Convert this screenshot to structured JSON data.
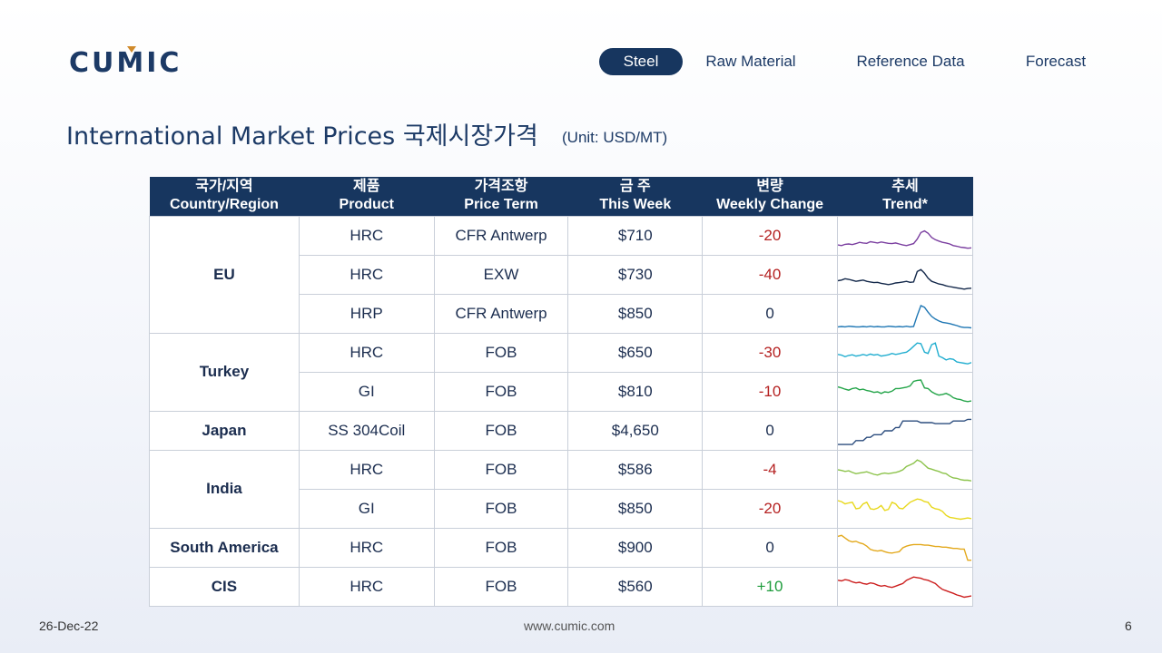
{
  "logo": {
    "text_pre": "CU",
    "text_m": "M",
    "text_post": "IC"
  },
  "nav": [
    {
      "label": "Steel",
      "active": true
    },
    {
      "label": "Raw Material",
      "active": false
    },
    {
      "label": "Reference Data",
      "active": false
    },
    {
      "label": "Forecast",
      "active": false
    }
  ],
  "title": "International Market Prices 국제시장가격",
  "unit": "(Unit: USD/MT)",
  "table": {
    "headers": [
      {
        "ko": "국가/지역",
        "en": "Country/Region"
      },
      {
        "ko": "제품",
        "en": "Product"
      },
      {
        "ko": "가격조항",
        "en": "Price Term"
      },
      {
        "ko": "금 주",
        "en": "This Week"
      },
      {
        "ko": "변량",
        "en": "Weekly Change"
      },
      {
        "ko": "추세",
        "en": "Trend*"
      }
    ],
    "rows": [
      {
        "region": "EU",
        "product": "HRC",
        "term": "CFR Antwerp",
        "price": "$710",
        "change": "-20",
        "trend_color": "#7b3fa0",
        "trend": [
          78,
          80,
          76,
          75,
          77,
          74,
          70,
          72,
          73,
          68,
          70,
          72,
          69,
          71,
          73,
          74,
          72,
          75,
          78,
          80,
          77,
          74,
          60,
          40,
          35,
          42,
          55,
          62,
          66,
          70,
          72,
          75,
          80,
          82,
          85,
          86,
          88,
          87
        ]
      },
      {
        "region": "EU",
        "product": "HRC",
        "term": "EXW",
        "price": "$730",
        "change": "-40",
        "trend_color": "#13284a",
        "trend": [
          68,
          66,
          62,
          64,
          67,
          70,
          68,
          66,
          70,
          72,
          74,
          73,
          76,
          78,
          80,
          78,
          75,
          74,
          72,
          70,
          73,
          72,
          40,
          34,
          45,
          60,
          70,
          74,
          78,
          80,
          84,
          86,
          88,
          90,
          92,
          94,
          92,
          91
        ]
      },
      {
        "region": "EU",
        "product": "HRP",
        "term": "CFR Antwerp",
        "price": "$850",
        "change": "0",
        "trend_color": "#1f77b4",
        "trend": [
          90,
          89,
          90,
          88,
          89,
          90,
          90,
          89,
          90,
          88,
          90,
          89,
          90,
          90,
          88,
          89,
          90,
          89,
          90,
          88,
          90,
          89,
          55,
          25,
          30,
          45,
          58,
          66,
          72,
          76,
          78,
          80,
          83,
          86,
          90,
          92,
          92,
          93
        ]
      },
      {
        "region": "Turkey",
        "product": "HRC",
        "term": "FOB",
        "price": "$650",
        "change": "-30",
        "trend_color": "#22aed0",
        "trend": [
          55,
          57,
          62,
          58,
          56,
          60,
          58,
          55,
          58,
          54,
          57,
          55,
          60,
          58,
          56,
          52,
          55,
          53,
          50,
          48,
          40,
          30,
          20,
          22,
          48,
          52,
          25,
          20,
          60,
          65,
          72,
          68,
          70,
          78,
          80,
          82,
          84,
          80
        ]
      },
      {
        "region": "Turkey",
        "product": "GI",
        "term": "FOB",
        "price": "$810",
        "change": "-10",
        "trend_color": "#25a54a",
        "trend": [
          35,
          38,
          42,
          45,
          40,
          38,
          44,
          42,
          46,
          48,
          52,
          50,
          55,
          50,
          52,
          48,
          40,
          40,
          38,
          36,
          32,
          18,
          15,
          14,
          38,
          40,
          50,
          56,
          60,
          58,
          55,
          60,
          68,
          72,
          74,
          78,
          80,
          78
        ]
      },
      {
        "region": "Japan",
        "product": "SS 304Coil",
        "term": "FOB",
        "price": "$4,650",
        "change": "0",
        "trend_color": "#2c4d7e",
        "trend": [
          92,
          92,
          92,
          92,
          92,
          80,
          80,
          80,
          70,
          70,
          62,
          62,
          62,
          50,
          50,
          50,
          40,
          40,
          20,
          20,
          20,
          20,
          20,
          25,
          25,
          25,
          25,
          28,
          28,
          28,
          28,
          28,
          20,
          20,
          20,
          20,
          15,
          15
        ]
      },
      {
        "region": "India",
        "product": "HRC",
        "term": "FOB",
        "price": "$586",
        "change": "-4",
        "trend_color": "#8cc34b",
        "trend": [
          50,
          52,
          55,
          53,
          58,
          62,
          60,
          58,
          56,
          60,
          64,
          66,
          62,
          60,
          62,
          60,
          58,
          55,
          50,
          40,
          35,
          30,
          20,
          25,
          35,
          45,
          48,
          52,
          55,
          60,
          62,
          70,
          75,
          76,
          80,
          82,
          82,
          84
        ]
      },
      {
        "region": "India",
        "product": "GI",
        "term": "FOB",
        "price": "$850",
        "change": "-20",
        "trend_color": "#e8d81c",
        "trend": [
          25,
          28,
          35,
          32,
          30,
          50,
          48,
          35,
          30,
          50,
          52,
          48,
          40,
          55,
          52,
          30,
          35,
          48,
          50,
          40,
          30,
          25,
          20,
          22,
          28,
          30,
          45,
          50,
          52,
          58,
          70,
          76,
          78,
          80,
          82,
          80,
          78,
          80
        ]
      },
      {
        "region": "South America",
        "product": "HRC",
        "term": "FOB",
        "price": "$900",
        "change": "0",
        "trend_color": "#e3a91d",
        "trend": [
          15,
          12,
          20,
          28,
          32,
          30,
          35,
          38,
          45,
          55,
          58,
          60,
          58,
          62,
          65,
          66,
          64,
          62,
          50,
          45,
          42,
          40,
          40,
          40,
          42,
          42,
          44,
          46,
          46,
          48,
          48,
          50,
          52,
          52,
          54,
          54,
          88,
          88
        ]
      },
      {
        "region": "CIS",
        "product": "HRC",
        "term": "FOB",
        "price": "$560",
        "change": "+10",
        "trend_color": "#cc1f1f",
        "trend": [
          30,
          32,
          28,
          30,
          35,
          38,
          36,
          40,
          42,
          38,
          40,
          45,
          48,
          46,
          50,
          52,
          48,
          44,
          40,
          30,
          25,
          20,
          22,
          24,
          28,
          30,
          35,
          40,
          50,
          58,
          62,
          66,
          70,
          75,
          78,
          82,
          80,
          78
        ]
      }
    ]
  },
  "footer": {
    "date": "26-Dec-22",
    "website": "www.cumic.com",
    "page": "6"
  }
}
